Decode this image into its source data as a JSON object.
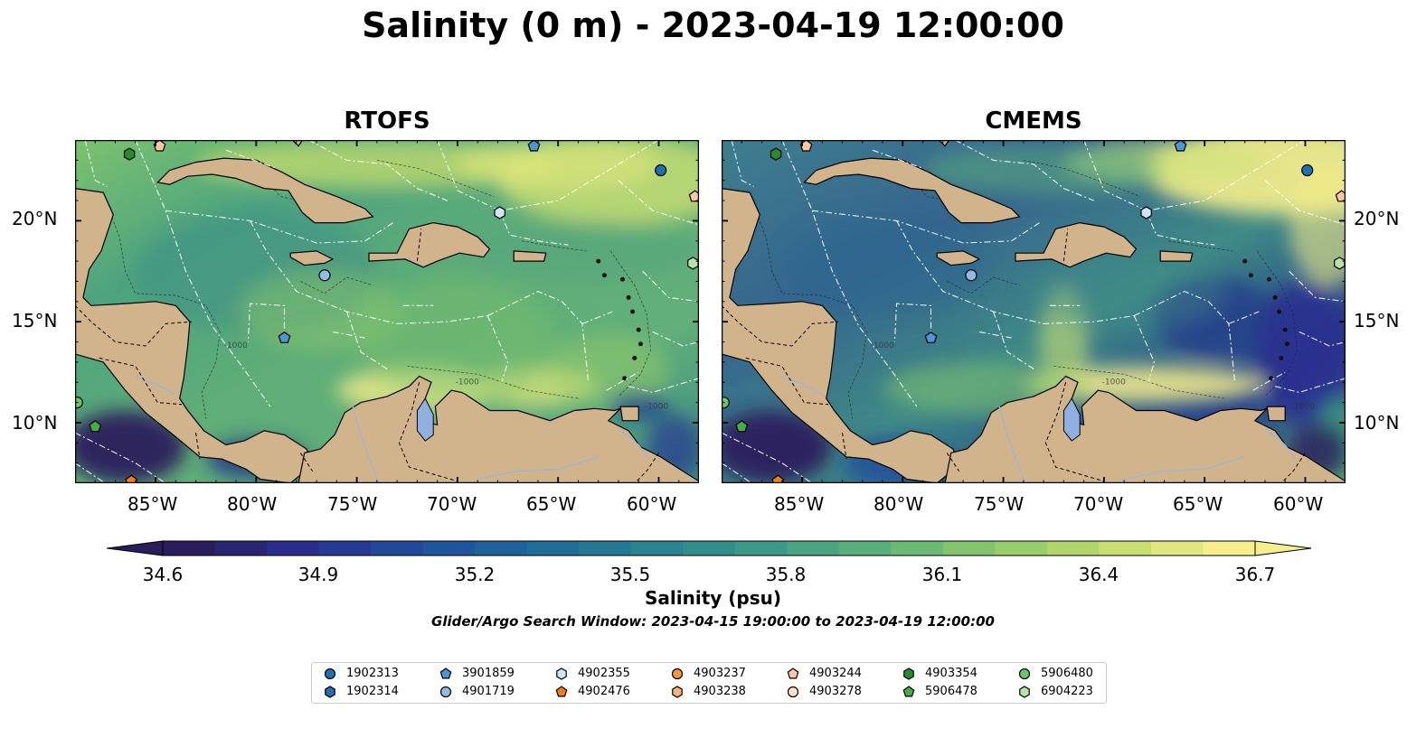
{
  "figure": {
    "title": "Salinity (0 m) - 2023-04-19 12:00:00",
    "panels": [
      {
        "title": "RTOFS",
        "field": "rtofs"
      },
      {
        "title": "CMEMS",
        "field": "cmems"
      }
    ],
    "lon_ticks": [
      "85°W",
      "80°W",
      "75°W",
      "70°W",
      "65°W",
      "60°W"
    ],
    "lat_ticks": [
      "20°N",
      "15°N",
      "10°N"
    ],
    "extent": {
      "lon_min": -89,
      "lon_max": -58,
      "lat_min": 7,
      "lat_max": 24
    },
    "colorbar": {
      "label": "Salinity (psu)",
      "ticks": [
        "34.6",
        "34.9",
        "35.2",
        "35.5",
        "35.8",
        "36.1",
        "36.4",
        "36.7"
      ],
      "vmin": 34.6,
      "vmax": 36.7,
      "colormap": [
        "#2a1d5c",
        "#2a2f8f",
        "#1f4e9c",
        "#1e6a98",
        "#2a8290",
        "#3c9a86",
        "#5eb37a",
        "#8ec86a",
        "#c3dd6c",
        "#f7ef8c"
      ]
    },
    "search_window": "Glider/Argo Search Window: 2023-04-15 19:00:00 to 2023-04-19 12:00:00",
    "land_color": "#d2b48c",
    "lake_color": "#8fb0e0",
    "contour_label": "-1000"
  },
  "legend": {
    "items": [
      {
        "id": "1902313",
        "marker": "circle",
        "color": "#1f6fb5"
      },
      {
        "id": "1902314",
        "marker": "hexagon",
        "color": "#1f6fb5"
      },
      {
        "id": "3901859",
        "marker": "pentagon",
        "color": "#4d95d3"
      },
      {
        "id": "4901719",
        "marker": "circle",
        "color": "#8fbde6"
      },
      {
        "id": "4902355",
        "marker": "hexagon",
        "color": "#cfe6f7"
      },
      {
        "id": "4902476",
        "marker": "pentagon",
        "color": "#f57d12"
      },
      {
        "id": "4903237",
        "marker": "circle",
        "color": "#f7963e"
      },
      {
        "id": "4903238",
        "marker": "hexagon",
        "color": "#fbb273"
      },
      {
        "id": "4903244",
        "marker": "pentagon",
        "color": "#fcc7a0"
      },
      {
        "id": "4903278",
        "marker": "circle",
        "color": "#fde0c8"
      },
      {
        "id": "4903354",
        "marker": "hexagon",
        "color": "#2a8a2e"
      },
      {
        "id": "5906478",
        "marker": "pentagon",
        "color": "#45ad45"
      },
      {
        "id": "5906480",
        "marker": "circle",
        "color": "#6fc56a"
      },
      {
        "id": "6904223",
        "marker": "hexagon",
        "color": "#b6e3a8"
      }
    ]
  },
  "platforms": [
    {
      "id": "1902313",
      "lon": -59.9,
      "lat": 22.5
    },
    {
      "id": "3901859",
      "lon": -66.2,
      "lat": 23.7
    },
    {
      "id": "4902355",
      "lon": -67.9,
      "lat": 20.4
    },
    {
      "id": "4901719",
      "lon": -76.6,
      "lat": 17.3
    },
    {
      "id": "3901859",
      "lon": -78.6,
      "lat": 14.2
    },
    {
      "id": "4903244",
      "lon": -84.8,
      "lat": 23.7
    },
    {
      "id": "4903244",
      "lon": -58.2,
      "lat": 21.2
    },
    {
      "id": "6904223",
      "lon": -58.3,
      "lat": 17.9
    },
    {
      "id": "4903354",
      "lon": -86.3,
      "lat": 23.3
    },
    {
      "id": "5906478",
      "lon": -88.0,
      "lat": 9.8
    },
    {
      "id": "4902476",
      "lon": -86.2,
      "lat": 7.1
    },
    {
      "id": "5906480",
      "lon": -88.9,
      "lat": 11.0
    }
  ]
}
